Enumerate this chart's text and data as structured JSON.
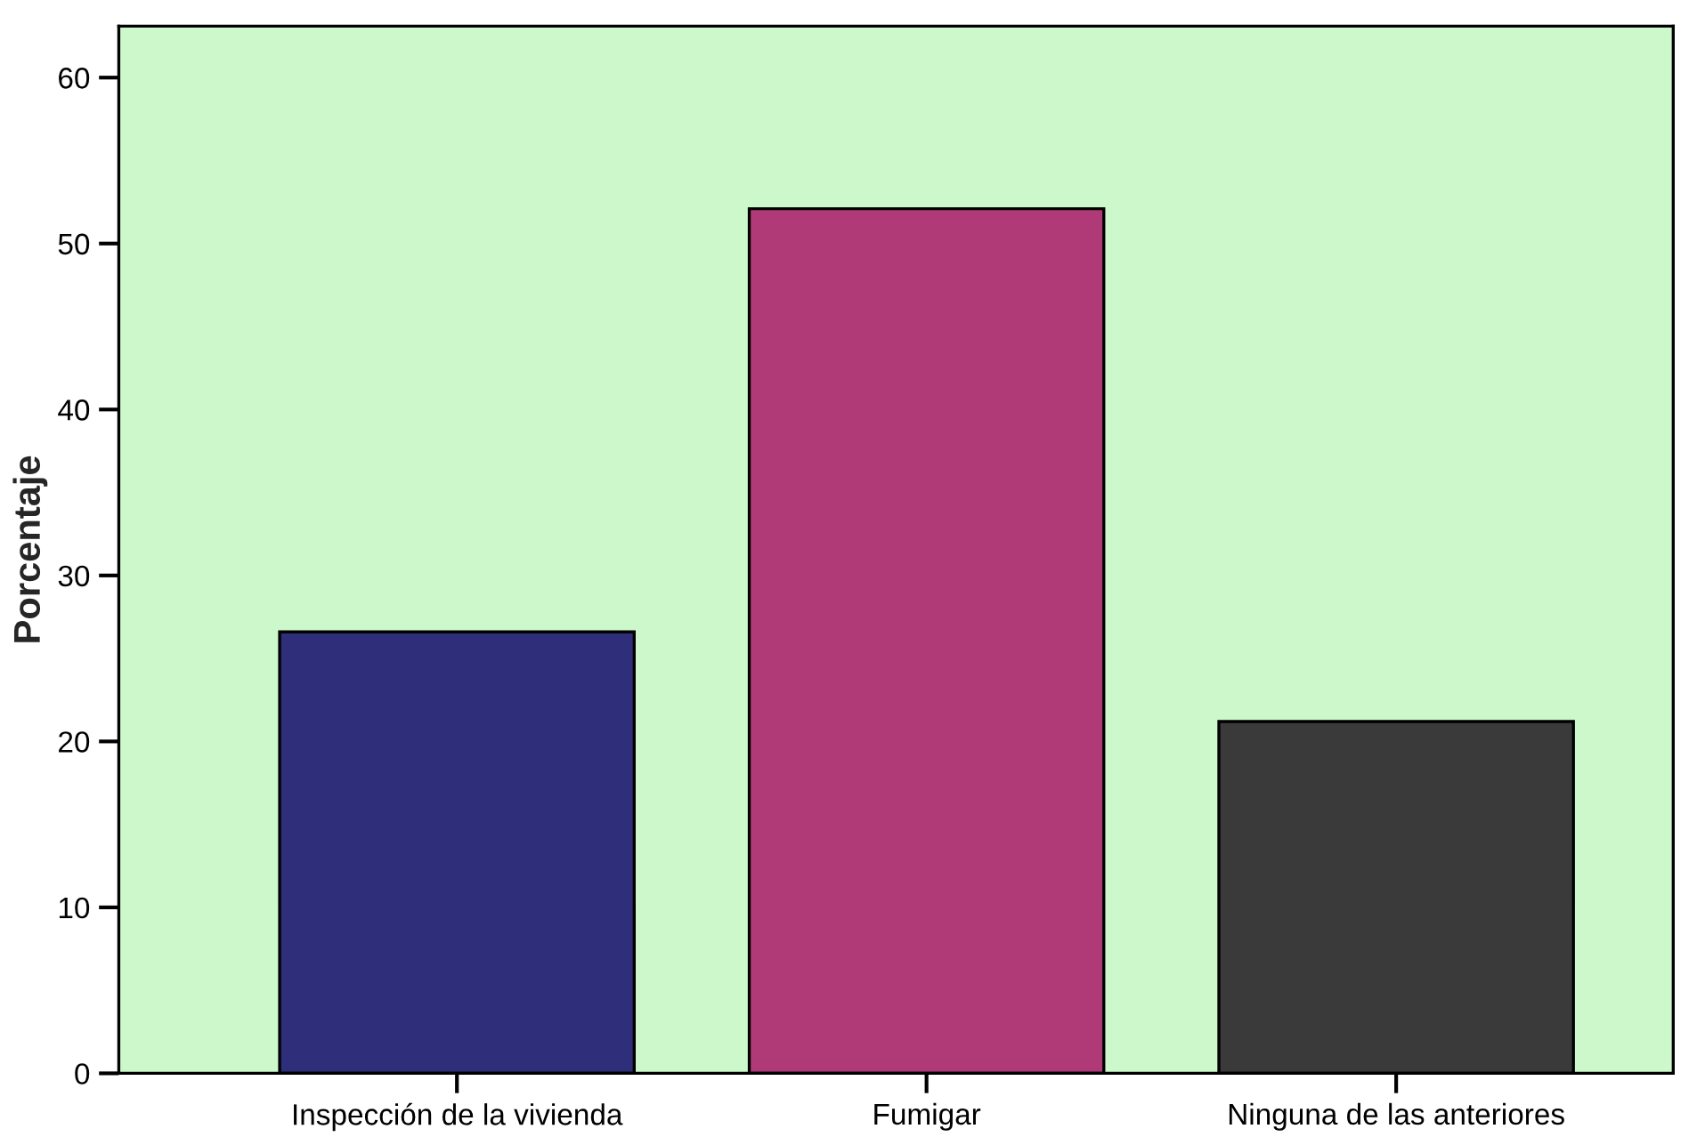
{
  "chart_data": {
    "type": "bar",
    "ylabel": "Porcentaje",
    "categories": [
      "Inspección de la vivienda",
      "Fumigar",
      "Ninguna de las anteriores"
    ],
    "values": [
      26.6,
      52.1,
      21.2
    ],
    "colors": [
      "#2e2e7a",
      "#b03a78",
      "#3a3a3a"
    ],
    "ylim": [
      0,
      63.1
    ],
    "yticks": [
      0,
      10,
      20,
      30,
      40,
      50,
      60
    ],
    "grid": false
  }
}
